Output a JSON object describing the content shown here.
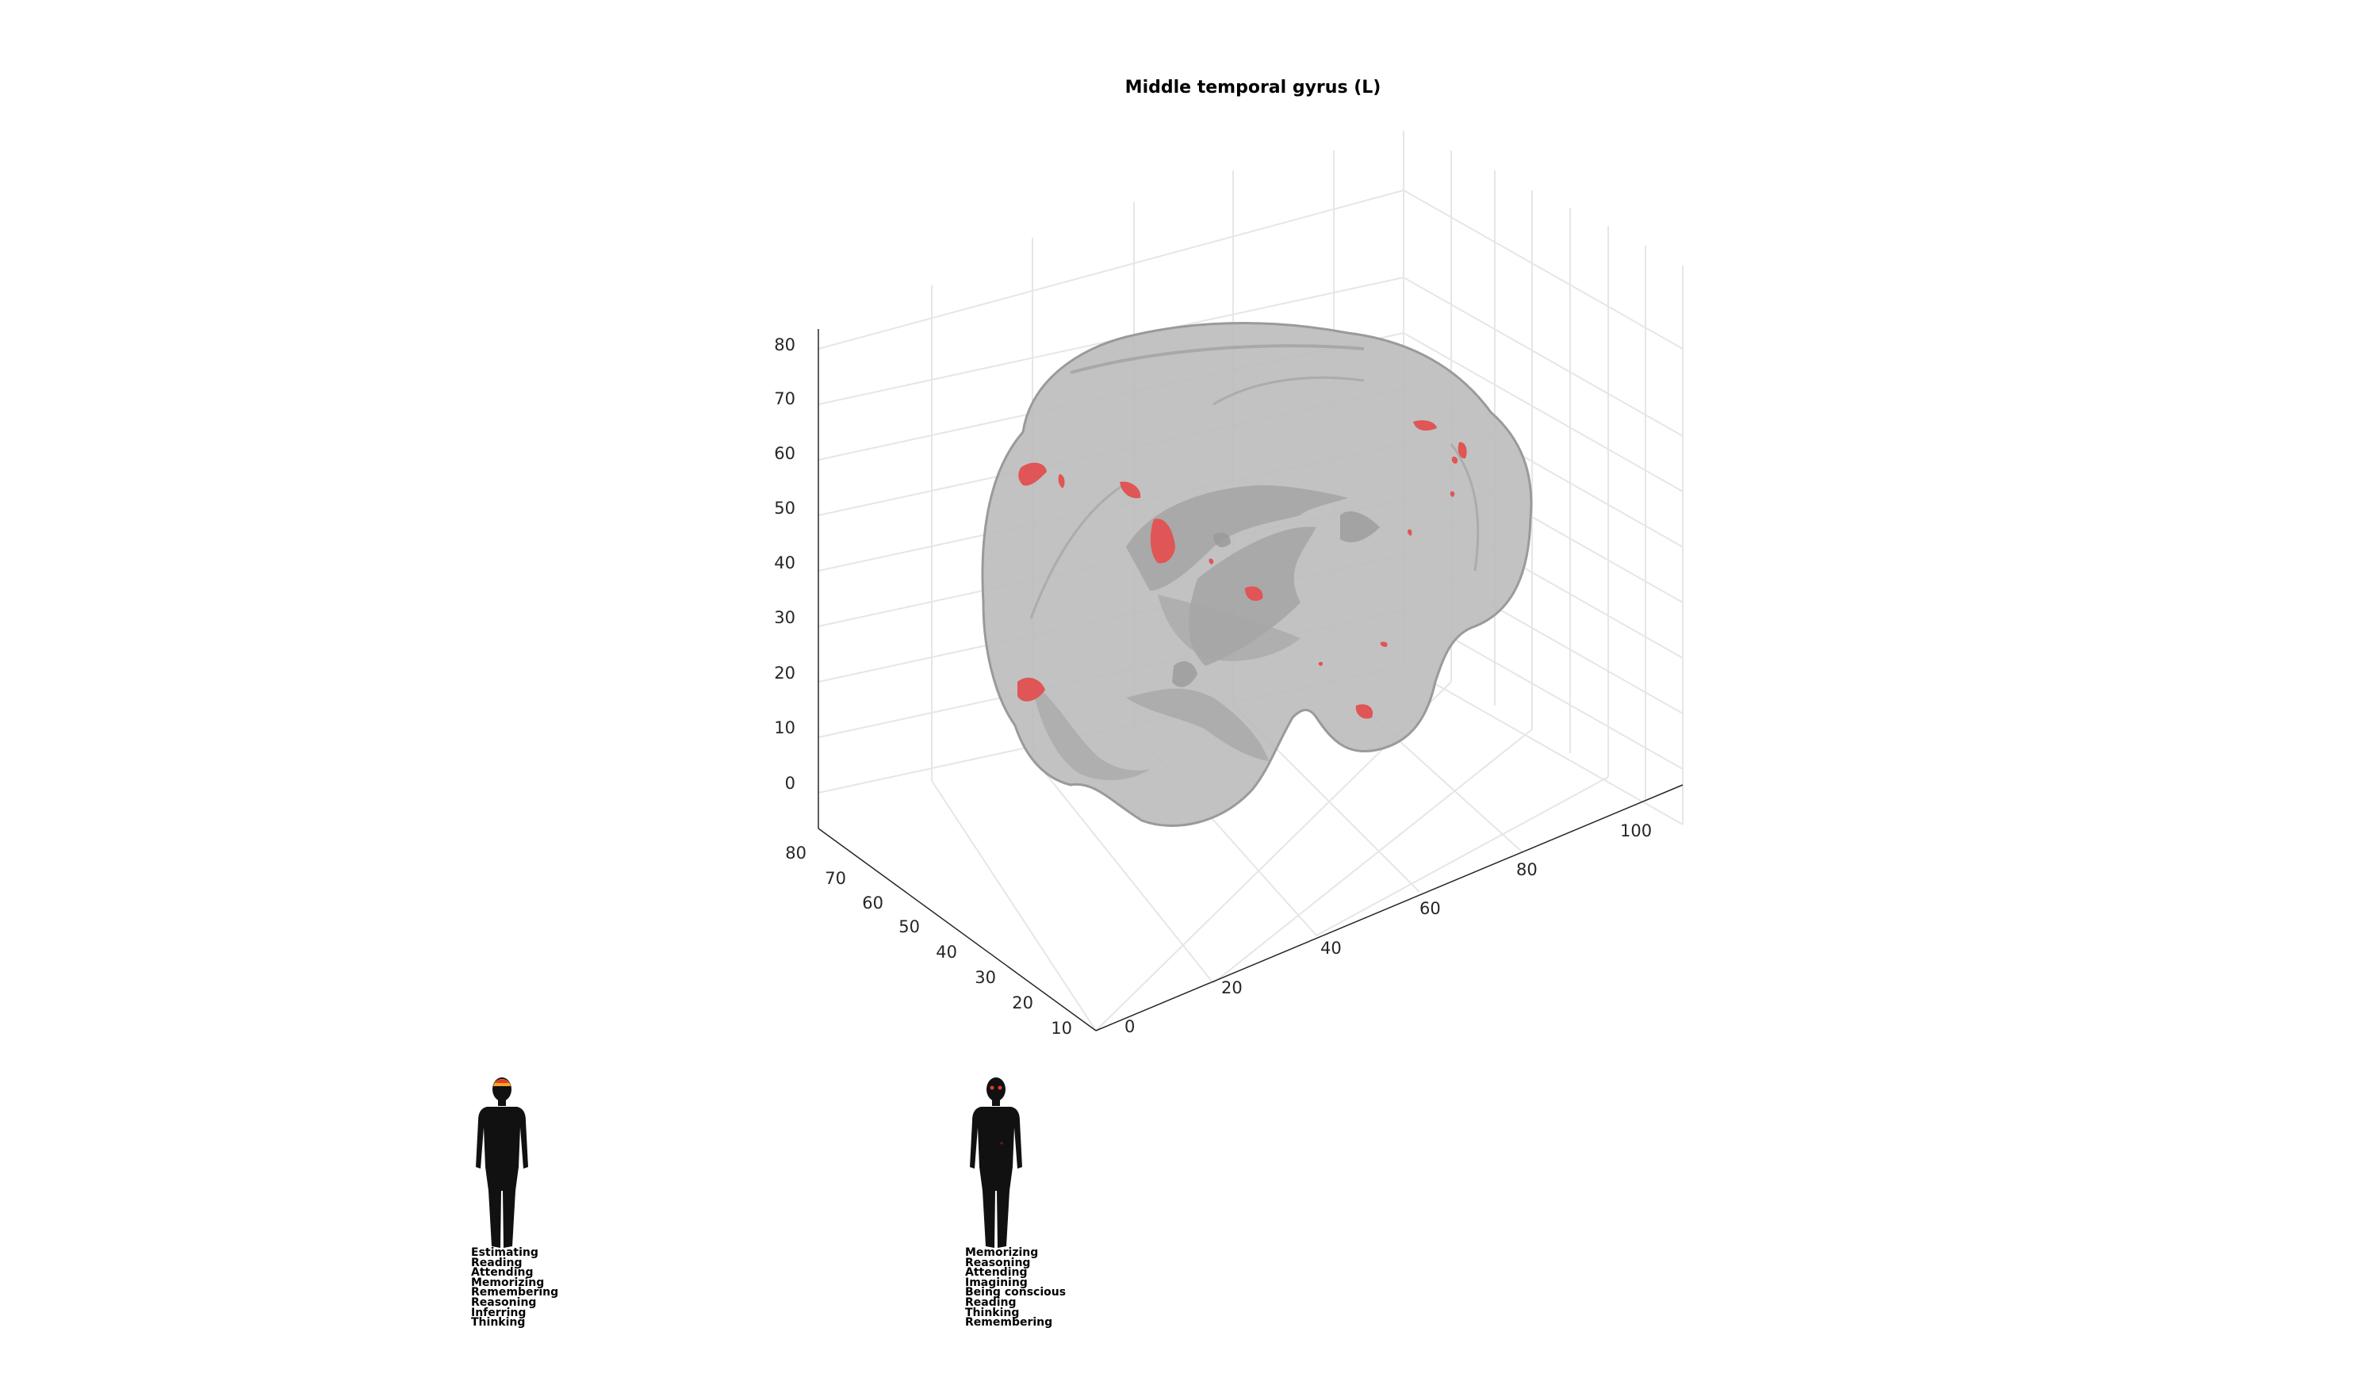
{
  "title": "Middle temporal gyrus (L)",
  "axes": {
    "z_ticks": [
      "0",
      "10",
      "20",
      "30",
      "40",
      "50",
      "60",
      "70",
      "80"
    ],
    "y_ticks": [
      "80",
      "70",
      "60",
      "50",
      "40",
      "30",
      "20",
      "10"
    ],
    "x_ticks": [
      "0",
      "20",
      "40",
      "60",
      "80",
      "100"
    ]
  },
  "colors": {
    "brain_fill": "#bdbdbd",
    "brain_edge": "#8f8f8f",
    "activation": "#e05555",
    "grid": "#e6e6e6",
    "axis": "#262626",
    "silhouette": "#111111"
  },
  "figures": [
    {
      "highlight": "head-top",
      "terms": [
        "Estimating",
        "Reading",
        "Attending",
        "Memorizing",
        "Remembering",
        "Reasoning",
        "Inferring",
        "Thinking"
      ]
    },
    {
      "highlight": "eyes",
      "terms": [
        "Memorizing",
        "Reasoning",
        "Attending",
        "Imagining",
        "Being conscious",
        "Reading",
        "Thinking",
        "Remembering"
      ]
    }
  ]
}
